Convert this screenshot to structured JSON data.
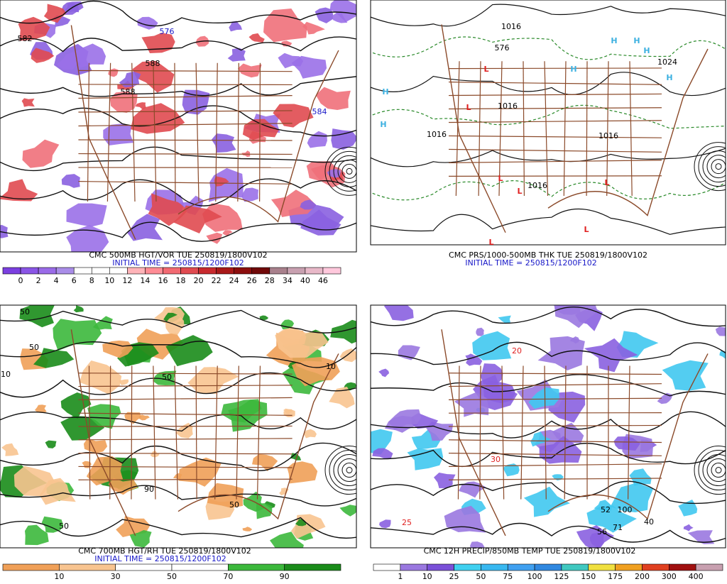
{
  "panels": [
    {
      "title": "CMC 500MB HGT/VOR TUE 250819/1800V102",
      "initial_time": "INITIAL TIME = 250815/1200F102",
      "colorbar": {
        "labels": [
          0,
          2,
          4,
          6,
          8,
          10,
          12,
          14,
          16,
          18,
          20,
          22,
          24,
          26,
          28,
          34,
          40,
          46
        ],
        "colors": [
          "#7b3fe0",
          "#8a55e6",
          "#9a6be8",
          "#a98de8",
          "#ffffff",
          "#ffffff",
          "#ffffff",
          "#ffb3b8",
          "#ff8c95",
          "#f26a72",
          "#e04a50",
          "#c82a2e",
          "#a81818",
          "#8c0e0e",
          "#700808",
          "#a8808c",
          "#c8a0b0",
          "#e8b8c8",
          "#ffc8dc"
        ]
      },
      "map_labels": [
        "582",
        "576",
        "588",
        "588",
        "584"
      ]
    },
    {
      "title": "CMC PRS/1000-500MB THK TUE 250819/1800V102",
      "initial_time": "INITIAL TIME = 250815/1200F102",
      "map_labels": [
        "H",
        "H",
        "H",
        "H",
        "H",
        "H",
        "H",
        "L",
        "L",
        "L",
        "L",
        "L",
        "L",
        "L",
        "1016",
        "1016",
        "1016",
        "1016",
        "1016",
        "1024",
        "576"
      ]
    },
    {
      "title": "CMC 700MB HGT/RH TUE 250819/1800V102",
      "initial_time": "INITIAL TIME = 250815/1200F102",
      "colorbar": {
        "labels": [
          10,
          30,
          50,
          70,
          90
        ],
        "colors": [
          "#f0a058",
          "#f8c490",
          "#ffffff",
          "#ffffff",
          "#3cb83c",
          "#1a8c1a"
        ]
      },
      "map_labels": [
        "50",
        "50",
        "10",
        "50",
        "90",
        "50",
        "10",
        "50"
      ]
    },
    {
      "title": "CMC 12H PRECIP/850MB TEMP TUE 250819/1800V102",
      "colorbar": {
        "labels": [
          1,
          10,
          25,
          50,
          75,
          100,
          125,
          150,
          175,
          200,
          300,
          400
        ],
        "colors": [
          "#ffffff",
          "#9a78e0",
          "#7a50d8",
          "#40d0f0",
          "#38b8f0",
          "#40a0f0",
          "#3088e0",
          "#40c8c0",
          "#f0e040",
          "#f0a020",
          "#e04020",
          "#a01010",
          "#c8a0b0"
        ]
      },
      "map_labels": [
        "20",
        "30",
        "25",
        "52",
        "100",
        "56",
        "71",
        "40"
      ]
    }
  ]
}
